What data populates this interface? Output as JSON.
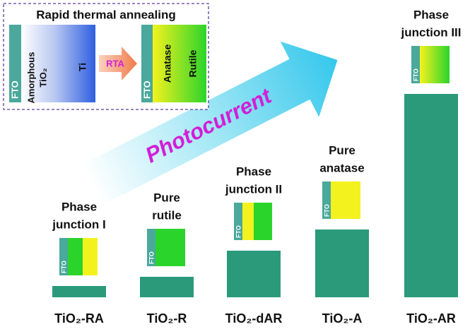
{
  "chart_data": {
    "type": "bar",
    "categories": [
      "TiO₂-RA",
      "TiO₂-R",
      "TiO₂-dAR",
      "TiO₂-A",
      "TiO₂-AR"
    ],
    "values": [
      16,
      29,
      66,
      96,
      288
    ],
    "color": "#2a9a7b",
    "ylim": [
      0,
      300
    ],
    "annotations": [
      [
        "Phase",
        "junction I"
      ],
      [
        "Pure",
        "rutile"
      ],
      [
        "Phase",
        "junction II"
      ],
      [
        "Pure",
        "anatase"
      ],
      [
        "Phase",
        "junction III"
      ]
    ],
    "arrow_label": "Photocurrent",
    "icon_label": "FTO",
    "inset": {
      "title": "Rapid thermal annealing",
      "before": [
        "FTO",
        "Amorphous",
        "TiO₂",
        "Ti"
      ],
      "process": "RTA",
      "after": [
        "FTO",
        "Anatase",
        "Rutile"
      ]
    }
  }
}
